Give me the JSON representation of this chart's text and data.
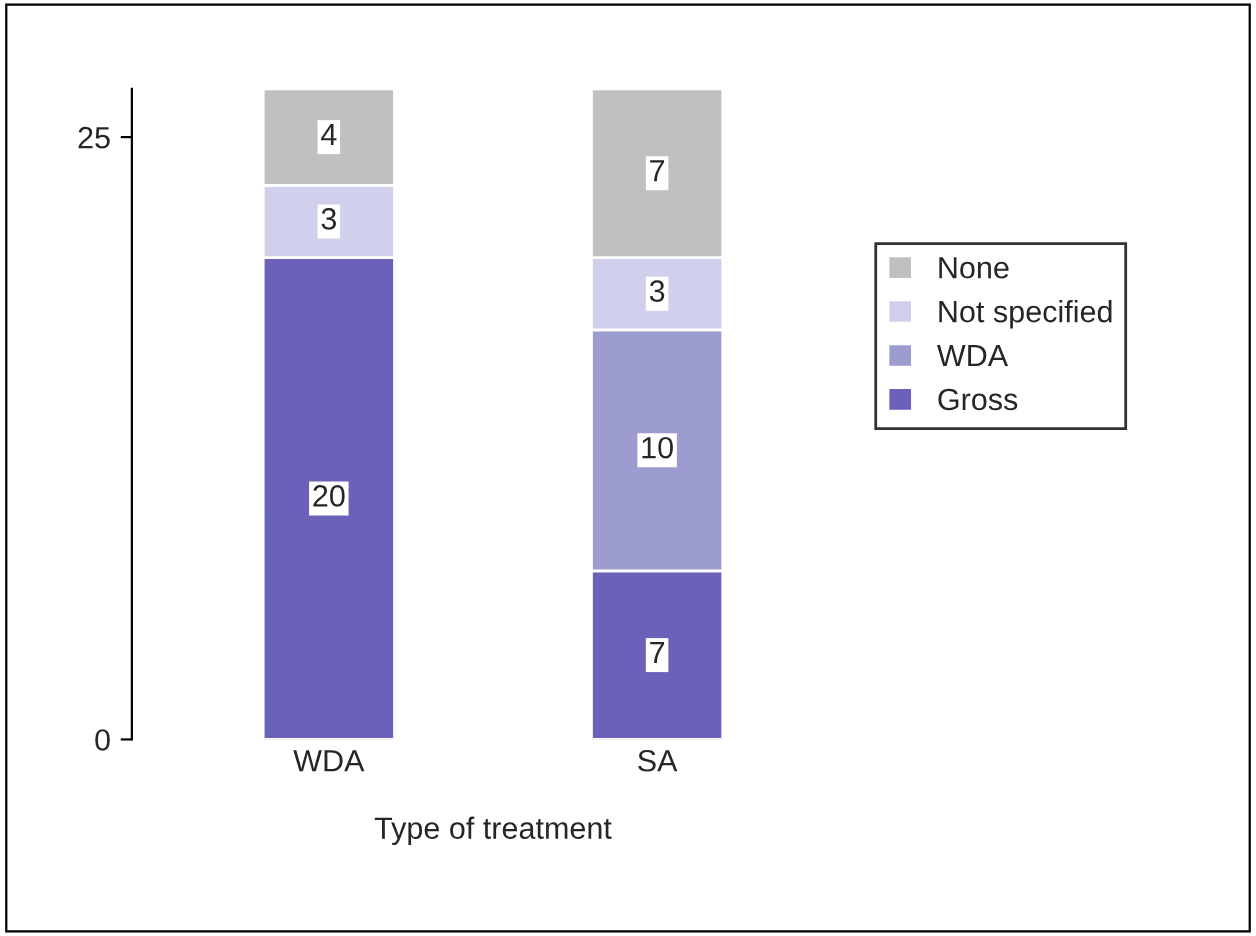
{
  "chart_data": {
    "type": "bar",
    "stacked": true,
    "xlabel": "Type of treatment",
    "categories": [
      "WDA",
      "SA"
    ],
    "series": [
      {
        "name": "Gross",
        "color": "#6a62b8",
        "values": [
          20,
          7
        ]
      },
      {
        "name": "WDA",
        "color": "#9c9cd0",
        "values": [
          null,
          10
        ]
      },
      {
        "name": "Not specified",
        "color": "#d0d0ec",
        "values": [
          3,
          3
        ]
      },
      {
        "name": "None",
        "color": "#c0c0c0",
        "values": [
          4,
          7
        ]
      }
    ],
    "ylim": [
      0,
      27
    ],
    "yticks": [
      0,
      25
    ],
    "grid": false,
    "legend": "right",
    "data_labels": true
  }
}
